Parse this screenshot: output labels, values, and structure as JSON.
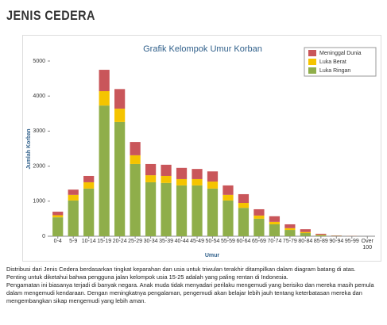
{
  "header": {
    "title": "JENIS CEDERA"
  },
  "chart_data": {
    "type": "stacked_bar",
    "title": "Grafik Kelompok Umur Korban",
    "x_label": "Umur",
    "y_label": "Jumlah Korban",
    "categories": [
      "0-4",
      "5-9",
      "10-14",
      "15-19",
      "20-24",
      "25-29",
      "30-34",
      "35-39",
      "40-44",
      "45-49",
      "50-54",
      "55-59",
      "60-64",
      "65-69",
      "70-74",
      "75-79",
      "80-84",
      "85-89",
      "90-94",
      "95-99",
      "Over 100"
    ],
    "series": [
      {
        "name": "Luka Ringan",
        "color": "#8fae4a",
        "values": [
          540,
          1020,
          1360,
          3730,
          3260,
          2060,
          1540,
          1520,
          1450,
          1450,
          1360,
          1020,
          810,
          500,
          340,
          180,
          90,
          30,
          10,
          5,
          0
        ]
      },
      {
        "name": "Luka Berat",
        "color": "#f5c400",
        "values": [
          60,
          160,
          180,
          410,
          380,
          250,
          200,
          200,
          180,
          180,
          200,
          160,
          140,
          90,
          70,
          50,
          30,
          10,
          0,
          0,
          0
        ]
      },
      {
        "name": "Meninggal Dunia",
        "color": "#c9565a",
        "values": [
          100,
          150,
          180,
          610,
          560,
          380,
          320,
          320,
          320,
          290,
          290,
          270,
          250,
          180,
          160,
          110,
          80,
          30,
          10,
          5,
          0
        ]
      }
    ],
    "ylim": [
      0,
      5000
    ],
    "yticks": [
      0,
      1000,
      2000,
      3000,
      4000,
      5000
    ],
    "grid": false,
    "legend": "top-right"
  },
  "description": [
    "Distribusi dari Jenis Cedera berdasarkan tingkat keparahan dan usia untuk triwulan terakhir ditampilkan dalam diagram batang di atas.",
    "Penting untuk diketahui bahwa pengguna jalan kelompok usia 15-25 adalah yang paling rentan di Indonesia.",
    "Pengamatan ini biasanya terjadi di banyak negara. Anak muda tidak menyadari perilaku mengemudi yang berisiko dan mereka masih pemula dalam mengemudi kendaraan. Dengan meningkatnya pengalaman, pengemudi akan belajar lebih jauh tentang keterbatasan mereka dan mengembangkan sikap mengemudi yang lebih aman."
  ]
}
